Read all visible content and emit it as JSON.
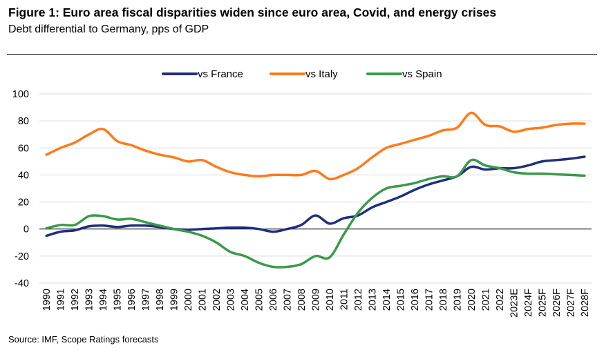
{
  "header": {
    "title": "Figure 1: Euro area fiscal disparities widen since euro area, Covid, and energy crises",
    "subtitle": "Debt differential to Germany, pps of GDP"
  },
  "footer": {
    "source": "Source: IMF, Scope Ratings forecasts"
  },
  "chart_data": {
    "type": "line",
    "title": "",
    "xlabel": "",
    "ylabel": "",
    "ylim": [
      -40,
      100
    ],
    "yticks": [
      -40,
      -20,
      0,
      20,
      40,
      60,
      80,
      100
    ],
    "grid": "horizontal",
    "legend_position": "top-center",
    "x": [
      "1990",
      "1991",
      "1992",
      "1993",
      "1994",
      "1995",
      "1996",
      "1997",
      "1998",
      "1999",
      "2000",
      "2001",
      "2002",
      "2003",
      "2004",
      "2005",
      "2006",
      "2007",
      "2008",
      "2009",
      "2010",
      "2011",
      "2012",
      "2013",
      "2014",
      "2015",
      "2016",
      "2017",
      "2018",
      "2019",
      "2020",
      "2021",
      "2022",
      "2023E",
      "2024F",
      "2025F",
      "2026F",
      "2027F",
      "2028F"
    ],
    "series": [
      {
        "name": "vs France",
        "color": "#1f2f7f",
        "values": [
          -5,
          -2,
          -1,
          2,
          2.5,
          1.5,
          2.5,
          2.5,
          1.5,
          0,
          -0.5,
          0,
          0.5,
          1,
          1,
          0,
          -2,
          0,
          3,
          10,
          4,
          8,
          10,
          16,
          20,
          24,
          29,
          33,
          36,
          39,
          46,
          44,
          45,
          45,
          47,
          50,
          51,
          52,
          53.5
        ]
      },
      {
        "name": "vs Italy",
        "color": "#ff7a1a",
        "values": [
          55,
          60,
          64,
          70,
          74,
          65,
          62,
          58,
          55,
          53,
          50,
          51,
          46,
          42,
          40,
          39,
          40,
          40,
          40,
          43,
          37,
          40,
          45,
          53,
          60,
          63,
          66,
          69,
          73,
          75,
          86,
          77,
          76,
          72,
          74,
          75,
          77,
          78,
          78
        ]
      },
      {
        "name": "vs Spain",
        "color": "#3a9a4a",
        "values": [
          0.5,
          3,
          3,
          9.5,
          9.5,
          7,
          7.5,
          5,
          2.5,
          0,
          -2,
          -5,
          -10,
          -17,
          -20,
          -25,
          -28,
          -28,
          -26,
          -20,
          -21,
          -4,
          12,
          23,
          30,
          32,
          34,
          37,
          39,
          39,
          51,
          47,
          45,
          42,
          41,
          41,
          40.5,
          40,
          39.5
        ]
      }
    ]
  }
}
